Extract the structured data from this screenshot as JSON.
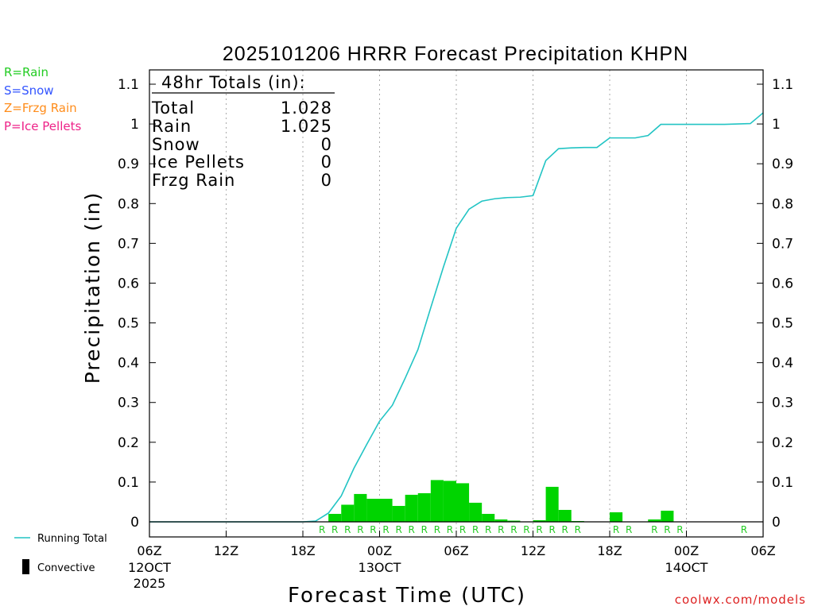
{
  "chart_data": {
    "type": "bar+line",
    "title": "2025101206 HRRR Forecast Precipitation KHPN",
    "xlabel": "Forecast Time (UTC)",
    "ylabel": "Precipitation (in)",
    "ylim": [
      0,
      1.1
    ],
    "yticks": [
      "0",
      "0.1",
      "0.2",
      "0.3",
      "0.4",
      "0.5",
      "0.6",
      "0.7",
      "0.8",
      "0.9",
      "1",
      "1.1"
    ],
    "xlim_hours": [
      0,
      48
    ],
    "xticks": [
      {
        "hour": 0,
        "label": "06Z",
        "sub1": "12OCT",
        "sub2": "2025"
      },
      {
        "hour": 6,
        "label": "12Z",
        "sub1": "",
        "sub2": ""
      },
      {
        "hour": 12,
        "label": "18Z",
        "sub1": "",
        "sub2": ""
      },
      {
        "hour": 18,
        "label": "00Z",
        "sub1": "13OCT",
        "sub2": ""
      },
      {
        "hour": 24,
        "label": "06Z",
        "sub1": "",
        "sub2": ""
      },
      {
        "hour": 30,
        "label": "12Z",
        "sub1": "",
        "sub2": ""
      },
      {
        "hour": 36,
        "label": "18Z",
        "sub1": "",
        "sub2": ""
      },
      {
        "hour": 42,
        "label": "00Z",
        "sub1": "14OCT",
        "sub2": ""
      },
      {
        "hour": 48,
        "label": "06Z",
        "sub1": "",
        "sub2": ""
      }
    ],
    "hourly_precip": {
      "name": "Hourly precipitation (Rain)",
      "hours": [
        14,
        15,
        16,
        17,
        18,
        19,
        20,
        21,
        22,
        23,
        24,
        25,
        26,
        27,
        28,
        29,
        30,
        31,
        32,
        33,
        34,
        35,
        36,
        37,
        38,
        39,
        40,
        41,
        42,
        43,
        44,
        45,
        46,
        47
      ],
      "values": [
        0.02,
        0.043,
        0.07,
        0.058,
        0.058,
        0.04,
        0.068,
        0.072,
        0.105,
        0.103,
        0.097,
        0.048,
        0.02,
        0.006,
        0.003,
        0.001,
        0.004,
        0.088,
        0.03,
        0.002,
        0.001,
        0.0,
        0.024,
        0.0,
        0.0,
        0.006,
        0.028,
        0.0,
        0.0,
        0.0,
        0.0,
        0.0,
        0.001,
        0.0
      ]
    },
    "running_total": {
      "name": "Running Total",
      "hours": [
        0,
        12,
        13,
        14,
        15,
        16,
        17,
        18,
        19,
        20,
        21,
        22,
        23,
        24,
        25,
        26,
        27,
        28,
        29,
        30,
        31,
        32,
        33,
        34,
        35,
        36,
        37,
        38,
        39,
        40,
        41,
        42,
        43,
        44,
        45,
        46,
        47,
        48
      ],
      "values": [
        0,
        0,
        0.002,
        0.022,
        0.065,
        0.135,
        0.195,
        0.253,
        0.293,
        0.361,
        0.433,
        0.538,
        0.641,
        0.738,
        0.786,
        0.806,
        0.812,
        0.815,
        0.816,
        0.82,
        0.908,
        0.938,
        0.94,
        0.941,
        0.941,
        0.965,
        0.965,
        0.965,
        0.971,
        0.999,
        0.999,
        0.999,
        0.999,
        0.999,
        0.999,
        1.0,
        1.001,
        1.028
      ]
    },
    "ptype_markers": {
      "hours": [
        13,
        14,
        15,
        16,
        17,
        18,
        19,
        20,
        21,
        22,
        23,
        24,
        25,
        26,
        27,
        28,
        29,
        30,
        31,
        32,
        33,
        36,
        37,
        39,
        40,
        41,
        46
      ],
      "symbol": "R"
    }
  },
  "totals_box": {
    "header": "48hr Totals (in):",
    "rows": [
      {
        "label": "Total",
        "value": "1.028"
      },
      {
        "label": "Rain",
        "value": "1.025"
      },
      {
        "label": "Snow",
        "value": "0"
      },
      {
        "label": "Ice Pellets",
        "value": "0"
      },
      {
        "label": "Frzg Rain",
        "value": "0"
      }
    ]
  },
  "ptype_legend": [
    {
      "text": "R=Rain",
      "color": "#22cc22"
    },
    {
      "text": "S=Snow",
      "color": "#3355ff"
    },
    {
      "text": "Z=Frzg Rain",
      "color": "#ff8c1a"
    },
    {
      "text": "P=Ice Pellets",
      "color": "#ee2288"
    }
  ],
  "series_legend": [
    {
      "text": "Running Total",
      "kind": "line",
      "color": "#22c4c4"
    },
    {
      "text": "Convective",
      "kind": "bar",
      "color": "#000000"
    }
  ],
  "colors": {
    "bars": "#00d400",
    "line": "#22c4c4",
    "rain_marker": "#22cc22",
    "credit": "#dd2222"
  },
  "credit": "coolwx.com/models"
}
